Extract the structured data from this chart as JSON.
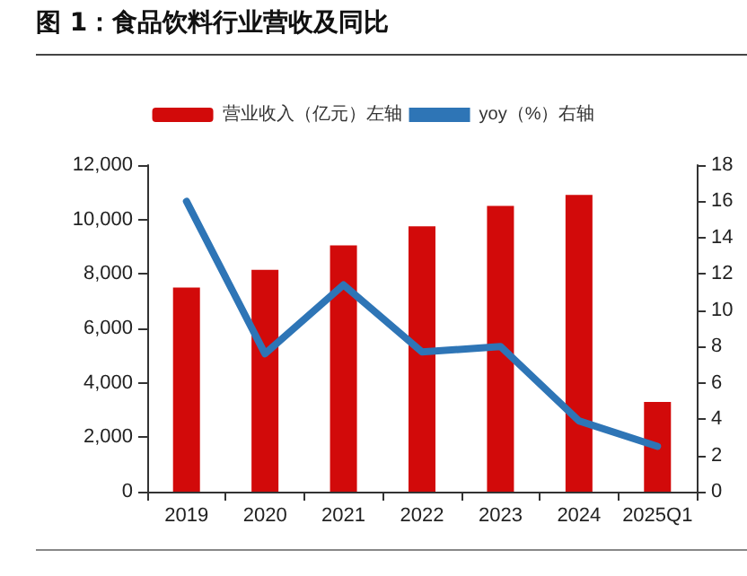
{
  "chart_data": {
    "type": "bar",
    "title": "图 1：食品饮料行业营收及同比",
    "categories": [
      "2019",
      "2020",
      "2021",
      "2022",
      "2023",
      "2024",
      "2025Q1"
    ],
    "series": [
      {
        "name": "营业收入（亿元）左轴",
        "color": "#d20a0a",
        "values": [
          7500,
          8150,
          9050,
          9750,
          10500,
          10900,
          3300
        ]
      },
      {
        "name": "yoy（%）右轴",
        "type": "line",
        "axis": "y2",
        "color": "#2e75b6",
        "values": [
          16.0,
          7.6,
          11.4,
          7.7,
          8.0,
          3.9,
          2.5
        ]
      }
    ],
    "ylim": [
      0,
      12000
    ],
    "yticks": [
      0,
      {
        "value": 2000,
        "label": "2,000"
      },
      {
        "value": 4000,
        "label": "4,000"
      },
      {
        "value": 6000,
        "label": "6,000"
      },
      {
        "value": 8000,
        "label": "8,000"
      },
      {
        "value": 10000,
        "label": "10,000"
      },
      {
        "value": 12000,
        "label": "12,000"
      }
    ],
    "y2lim": [
      0,
      18
    ],
    "y2ticks": [
      0,
      2,
      4,
      6,
      8,
      10,
      12,
      14,
      16,
      18
    ],
    "legend": "top",
    "grid": false,
    "marker": "none",
    "line_style": "solid"
  }
}
